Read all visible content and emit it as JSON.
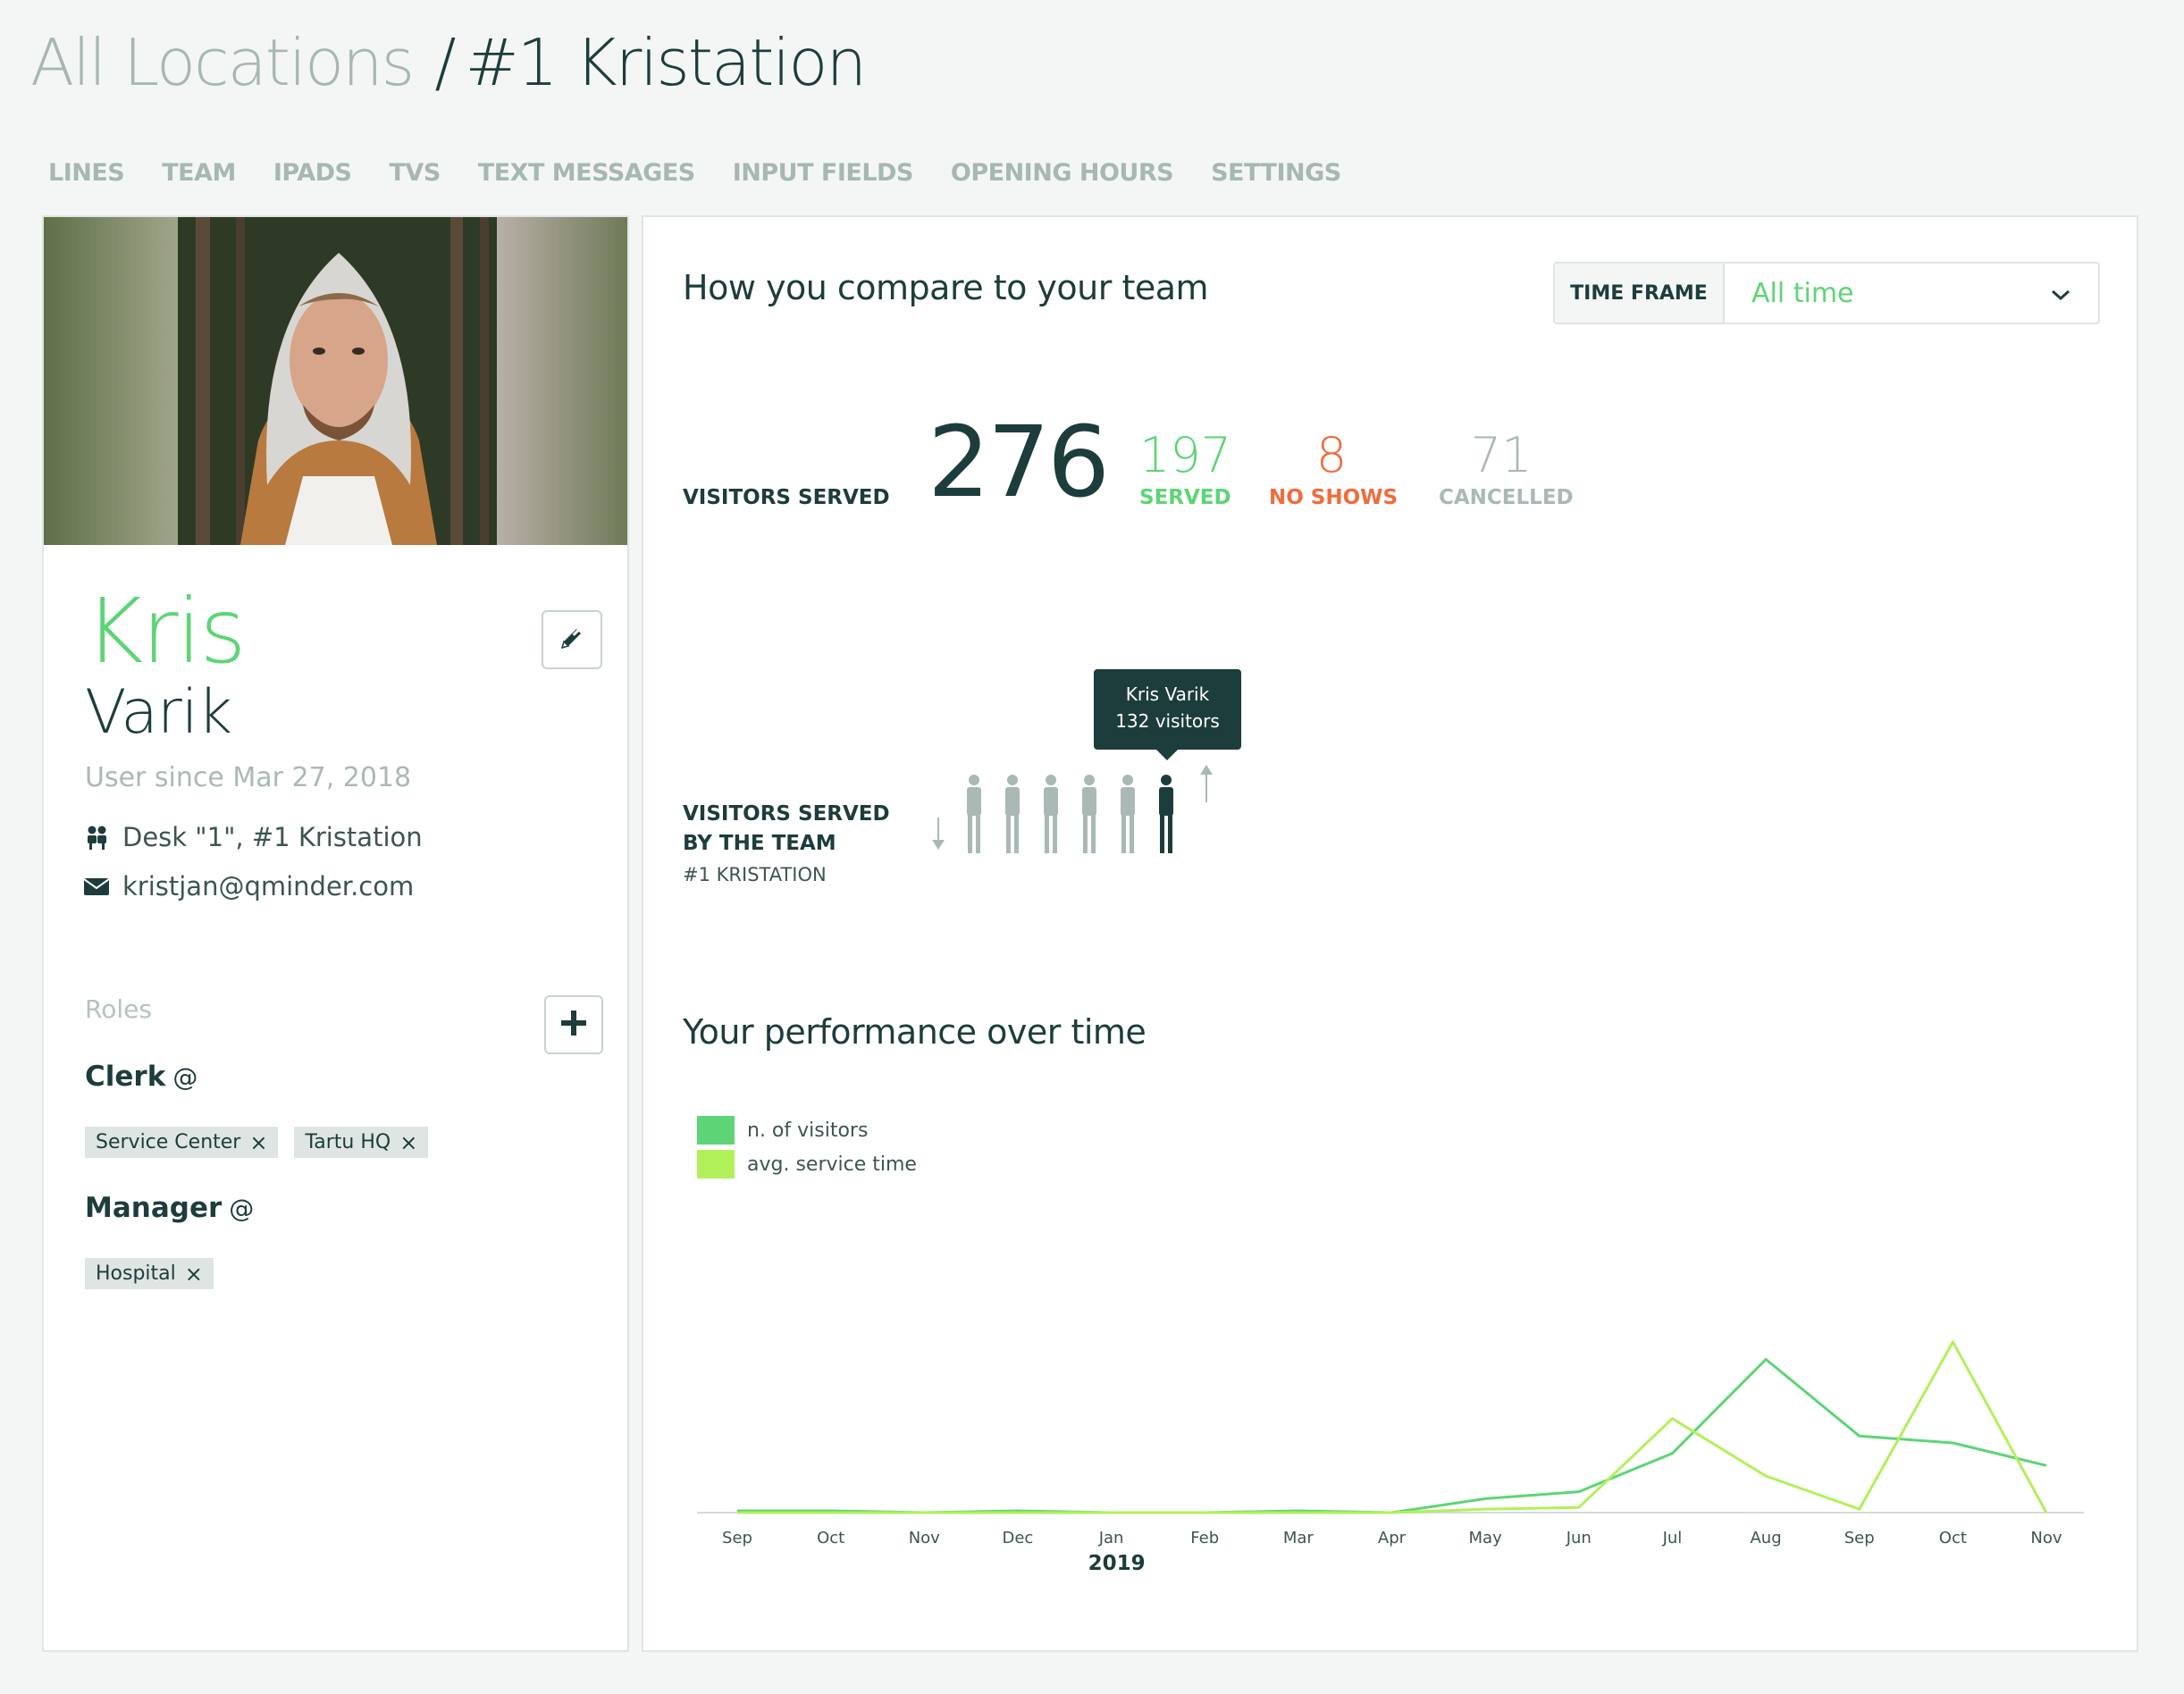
{
  "breadcrumb": {
    "all": "All Locations",
    "sep": "/",
    "current": "#1 Kristation"
  },
  "tabs": [
    "LINES",
    "TEAM",
    "IPADS",
    "TVS",
    "TEXT MESSAGES",
    "INPUT FIELDS",
    "OPENING HOURS",
    "SETTINGS"
  ],
  "profile": {
    "first_name": "Kris",
    "last_name": "Varik",
    "since": "User since Mar 27, 2018",
    "desk": "Desk \"1\", #1 Kristation",
    "email": "kristjan@qminder.com",
    "roles_label": "Roles",
    "roles": [
      {
        "title": "Clerk",
        "at": "@",
        "locations": [
          "Service Center",
          "Tartu HQ"
        ]
      },
      {
        "title": "Manager",
        "at": "@",
        "locations": [
          "Hospital"
        ]
      }
    ]
  },
  "compare": {
    "title": "How you compare to your team",
    "timeframe_label": "TIME FRAME",
    "timeframe_value": "All time",
    "visitors_label": "VISITORS SERVED",
    "total": "276",
    "served": "197",
    "served_label": "SERVED",
    "noshows": "8",
    "noshows_label": "NO SHOWS",
    "cancelled": "71",
    "cancelled_label": "CANCELLED",
    "team_label_1": "VISITORS SERVED",
    "team_label_2": "BY THE TEAM",
    "team_location": "#1 KRISTATION",
    "tooltip_name": "Kris Varik",
    "tooltip_value": "132 visitors",
    "team_people": 6,
    "highlight_index": 5
  },
  "performance": {
    "title": "Your performance over time",
    "legend": [
      "n. of visitors",
      "avg. service time"
    ],
    "colors": {
      "visitors": "#5dd576",
      "service": "#b2f05a",
      "accent": "#5dd576",
      "noshow": "#f26b3a",
      "muted": "#aab9b5",
      "dark": "#1c3d3b"
    }
  },
  "chart_data": {
    "type": "line",
    "categories": [
      "Sep",
      "Oct",
      "Nov",
      "Dec",
      "Jan",
      "Feb",
      "Mar",
      "Apr",
      "May",
      "Jun",
      "Jul",
      "Aug",
      "Sep",
      "Oct",
      "Nov"
    ],
    "year_label": "2019",
    "year_at": "Jan",
    "series": [
      {
        "name": "n. of visitors",
        "values": [
          1,
          1,
          0,
          1,
          0,
          0,
          1,
          0,
          8,
          12,
          34,
          88,
          44,
          40,
          27
        ]
      },
      {
        "name": "avg. service time",
        "values": [
          0,
          0,
          0,
          0,
          0,
          0,
          0,
          0,
          2,
          3,
          54,
          21,
          2,
          98,
          0
        ]
      }
    ],
    "ylim": [
      0,
      100
    ]
  }
}
